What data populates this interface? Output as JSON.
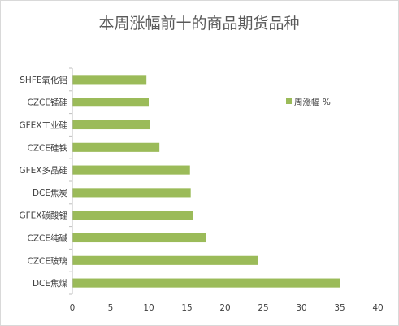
{
  "chart_data": {
    "type": "bar",
    "orientation": "horizontal",
    "title": "本周涨幅前十的商品期货品种",
    "categories": [
      "DCE焦煤",
      "CZCE玻璃",
      "CZCE纯碱",
      "GFEX碳酸锂",
      "DCE焦炭",
      "GFEX多晶硅",
      "CZCE硅铁",
      "GFEX工业硅",
      "CZCE锰硅",
      "SHFE氧化铝"
    ],
    "series": [
      {
        "name": "周涨幅 %",
        "color": "#9bbb59",
        "values": [
          35,
          24.3,
          17.5,
          15.8,
          15.5,
          15.4,
          11.4,
          10.2,
          10.0,
          9.7
        ]
      }
    ],
    "xlim": [
      0,
      40
    ],
    "xticks": [
      0,
      5,
      10,
      15,
      20,
      25,
      30,
      35,
      40
    ],
    "xlabel": "",
    "ylabel": "",
    "grid": false,
    "legend": "right"
  }
}
